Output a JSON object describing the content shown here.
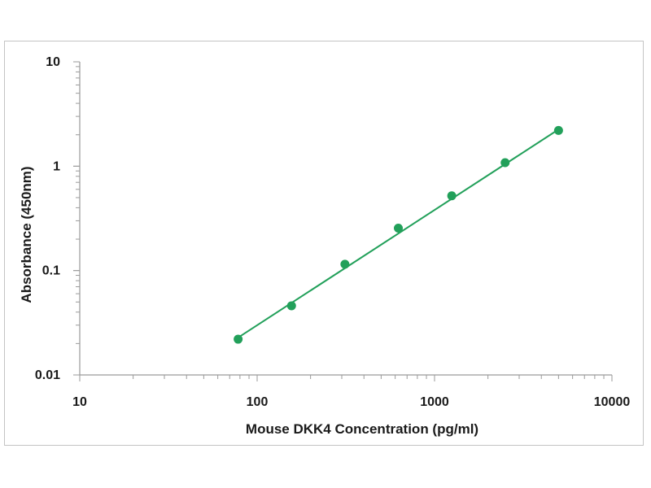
{
  "chart_data": {
    "type": "scatter",
    "title": "",
    "xlabel": "Mouse DKK4 Concentration (pg/ml)",
    "ylabel": "Absorbance (450nm)",
    "xscale": "log",
    "yscale": "log",
    "xlim": [
      10,
      10000
    ],
    "ylim": [
      0.01,
      10
    ],
    "x_ticks": [
      "10",
      "100",
      "1000",
      "10000"
    ],
    "y_ticks": [
      "0.01",
      "0.1",
      "1",
      "10"
    ],
    "grid": false,
    "legend": "none",
    "colors": {
      "series": "#22a05a",
      "axis": "#9a9a9a",
      "frame": "#c4c4c4"
    },
    "series": [
      {
        "points": [
          {
            "x": 78.125,
            "y": 0.022
          },
          {
            "x": 156.25,
            "y": 0.046
          },
          {
            "x": 312.5,
            "y": 0.115
          },
          {
            "x": 625,
            "y": 0.255
          },
          {
            "x": 1250,
            "y": 0.52
          },
          {
            "x": 2500,
            "y": 1.08
          },
          {
            "x": 5000,
            "y": 2.2
          }
        ],
        "fit_line": {
          "x_start": 78.125,
          "x_end": 5000,
          "y_start": 0.0228,
          "y_end": 2.25
        }
      }
    ]
  }
}
